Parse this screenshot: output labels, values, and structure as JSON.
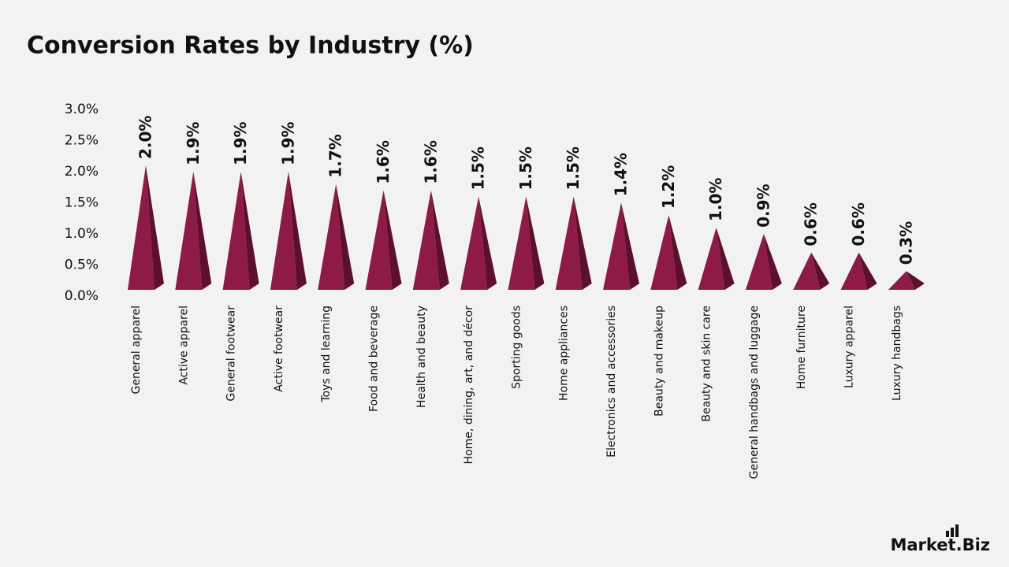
{
  "chart_data": {
    "type": "pyramid",
    "title": "Conversion Rates by Industry (%)",
    "categories": [
      "General apparel",
      "Active apparel",
      "General footwear",
      "Active footwear",
      "Toys and learning",
      "Food and beverage",
      "Health and beauty",
      "Home, dining, art, and décor",
      "Sporting goods",
      "Home appliances",
      "Electronics and accessories",
      "Beauty and makeup",
      "Beauty and skin care",
      "General handbags and luggage",
      "Home furniture",
      "Luxury apparel",
      "Luxury handbags"
    ],
    "values": [
      2.0,
      1.9,
      1.9,
      1.9,
      1.7,
      1.6,
      1.6,
      1.5,
      1.5,
      1.5,
      1.4,
      1.2,
      1.0,
      0.9,
      0.6,
      0.6,
      0.3
    ],
    "value_labels": [
      "2.0%",
      "1.9%",
      "1.9%",
      "1.9%",
      "1.7%",
      "1.6%",
      "1.6%",
      "1.5%",
      "1.5%",
      "1.5%",
      "1.4%",
      "1.2%",
      "1.0%",
      "0.9%",
      "0.6%",
      "0.6%",
      "0.3%"
    ],
    "color": "#8e1a47",
    "ylim": [
      0,
      3
    ],
    "yticks": [
      {
        "value": 0,
        "label": "0.0%"
      },
      {
        "value": 0.5,
        "label": "0.5%"
      },
      {
        "value": 1,
        "label": "1.0%"
      },
      {
        "value": 1.5,
        "label": "1.5%"
      },
      {
        "value": 2,
        "label": "2.0%"
      },
      {
        "value": 2.5,
        "label": "2.5%"
      },
      {
        "value": 3,
        "label": "3.0%"
      }
    ],
    "grid": false
  },
  "brand": "Market.Biz"
}
